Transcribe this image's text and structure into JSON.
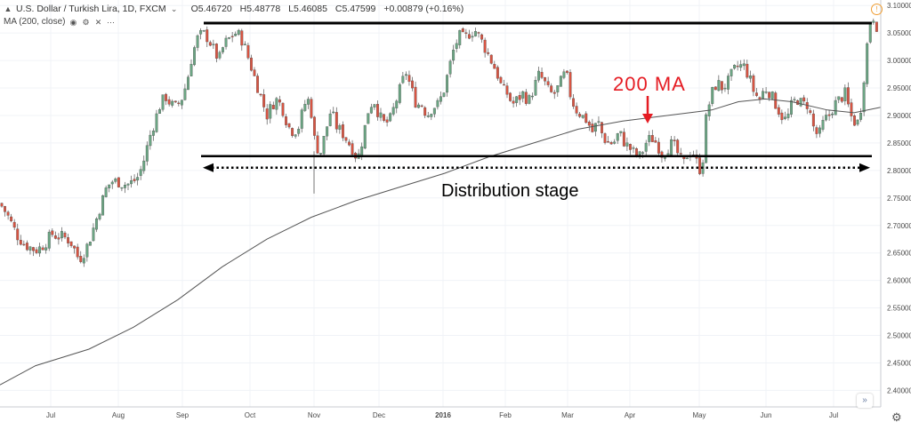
{
  "header": {
    "symbol": "U.S. Dollar / Turkish Lira, 1D, FXCM",
    "open": "O5.46720",
    "high": "H5.48778",
    "low": "L5.46085",
    "close": "C5.47599",
    "change": "+0.00879 (+0.16%)"
  },
  "ma_legend": "MA (200, close)",
  "annotations": {
    "ma_label": "200 MA",
    "stage_label": "Distribution stage"
  },
  "colors": {
    "up": "#6ba583",
    "down": "#d75442",
    "ma": "#555555",
    "grid": "#f0f3f7",
    "levels": "#000000",
    "arrow": "#e51c23"
  },
  "chart_data": {
    "type": "candlestick",
    "title": "U.S. Dollar / Turkish Lira, 1D, FXCM",
    "y_range": [
      2.37,
      3.11
    ],
    "y_ticks": [
      "2.40000",
      "2.45000",
      "2.50000",
      "2.55000",
      "2.60000",
      "2.65000",
      "2.70000",
      "2.75000",
      "2.80000",
      "2.85000",
      "2.90000",
      "2.95000",
      "3.00000",
      "3.05000",
      "3.10000"
    ],
    "x_ticks": [
      "Jul",
      "Aug",
      "Sep",
      "Oct",
      "Nov",
      "Dec",
      "2016",
      "Feb",
      "Mar",
      "Apr",
      "May",
      "Jun",
      "Jul"
    ],
    "grid": true,
    "price_path": [
      [
        0,
        2.74
      ],
      [
        8,
        2.72
      ],
      [
        14,
        2.7
      ],
      [
        20,
        2.68
      ],
      [
        28,
        2.665
      ],
      [
        34,
        2.66
      ],
      [
        40,
        2.655
      ],
      [
        46,
        2.66
      ],
      [
        52,
        2.67
      ],
      [
        58,
        2.685
      ],
      [
        64,
        2.68
      ],
      [
        70,
        2.68
      ],
      [
        76,
        2.675
      ],
      [
        82,
        2.665
      ],
      [
        86,
        2.645
      ],
      [
        90,
        2.64
      ],
      [
        96,
        2.655
      ],
      [
        102,
        2.68
      ],
      [
        108,
        2.71
      ],
      [
        114,
        2.74
      ],
      [
        120,
        2.77
      ],
      [
        126,
        2.78
      ],
      [
        132,
        2.78
      ],
      [
        138,
        2.775
      ],
      [
        144,
        2.775
      ],
      [
        150,
        2.78
      ],
      [
        156,
        2.79
      ],
      [
        162,
        2.82
      ],
      [
        168,
        2.86
      ],
      [
        174,
        2.89
      ],
      [
        180,
        2.92
      ],
      [
        186,
        2.935
      ],
      [
        192,
        2.92
      ],
      [
        198,
        2.915
      ],
      [
        204,
        2.93
      ],
      [
        210,
        2.96
      ],
      [
        216,
        3.01
      ],
      [
        222,
        3.04
      ],
      [
        228,
        3.05
      ],
      [
        234,
        3.04
      ],
      [
        240,
        3.02
      ],
      [
        246,
        3.0
      ],
      [
        252,
        3.03
      ],
      [
        258,
        3.04
      ],
      [
        264,
        3.05
      ],
      [
        270,
        3.045
      ],
      [
        276,
        3.02
      ],
      [
        282,
        2.99
      ],
      [
        288,
        2.96
      ],
      [
        294,
        2.93
      ],
      [
        300,
        2.9
      ],
      [
        306,
        2.92
      ],
      [
        312,
        2.93
      ],
      [
        318,
        2.91
      ],
      [
        324,
        2.88
      ],
      [
        330,
        2.87
      ],
      [
        336,
        2.88
      ],
      [
        342,
        2.92
      ],
      [
        348,
        2.93
      ],
      [
        354,
        2.85
      ],
      [
        360,
        2.83
      ],
      [
        366,
        2.87
      ],
      [
        372,
        2.91
      ],
      [
        378,
        2.88
      ],
      [
        384,
        2.87
      ],
      [
        390,
        2.855
      ],
      [
        396,
        2.84
      ],
      [
        402,
        2.82
      ],
      [
        408,
        2.86
      ],
      [
        414,
        2.91
      ],
      [
        420,
        2.93
      ],
      [
        426,
        2.9
      ],
      [
        432,
        2.885
      ],
      [
        438,
        2.89
      ],
      [
        444,
        2.92
      ],
      [
        450,
        2.95
      ],
      [
        456,
        2.98
      ],
      [
        462,
        2.95
      ],
      [
        468,
        2.92
      ],
      [
        474,
        2.92
      ],
      [
        480,
        2.9
      ],
      [
        486,
        2.915
      ],
      [
        492,
        2.92
      ],
      [
        498,
        2.94
      ],
      [
        504,
        2.98
      ],
      [
        510,
        3.02
      ],
      [
        516,
        3.045
      ],
      [
        522,
        3.04
      ],
      [
        528,
        3.05
      ],
      [
        534,
        3.055
      ],
      [
        540,
        3.04
      ],
      [
        546,
        3.02
      ],
      [
        552,
        3.0
      ],
      [
        558,
        2.98
      ],
      [
        564,
        2.95
      ],
      [
        570,
        2.94
      ],
      [
        576,
        2.92
      ],
      [
        582,
        2.93
      ],
      [
        588,
        2.94
      ],
      [
        594,
        2.925
      ],
      [
        600,
        2.95
      ],
      [
        606,
        2.975
      ],
      [
        612,
        2.96
      ],
      [
        618,
        2.94
      ],
      [
        624,
        2.94
      ],
      [
        630,
        2.96
      ],
      [
        636,
        2.98
      ],
      [
        642,
        2.93
      ],
      [
        648,
        2.91
      ],
      [
        654,
        2.9
      ],
      [
        660,
        2.89
      ],
      [
        666,
        2.87
      ],
      [
        672,
        2.89
      ],
      [
        678,
        2.86
      ],
      [
        684,
        2.85
      ],
      [
        690,
        2.85
      ],
      [
        696,
        2.87
      ],
      [
        702,
        2.85
      ],
      [
        708,
        2.84
      ],
      [
        714,
        2.83
      ],
      [
        720,
        2.825
      ],
      [
        726,
        2.85
      ],
      [
        732,
        2.86
      ],
      [
        738,
        2.85
      ],
      [
        744,
        2.83
      ],
      [
        750,
        2.84
      ],
      [
        756,
        2.85
      ],
      [
        762,
        2.83
      ],
      [
        768,
        2.81
      ],
      [
        774,
        2.835
      ],
      [
        780,
        2.83
      ],
      [
        786,
        2.8
      ],
      [
        790,
        2.82
      ],
      [
        794,
        2.9
      ],
      [
        800,
        2.94
      ],
      [
        806,
        2.96
      ],
      [
        812,
        2.95
      ],
      [
        818,
        2.96
      ],
      [
        824,
        2.98
      ],
      [
        830,
        2.99
      ],
      [
        836,
        2.99
      ],
      [
        842,
        2.97
      ],
      [
        848,
        2.94
      ],
      [
        854,
        2.93
      ],
      [
        860,
        2.95
      ],
      [
        866,
        2.94
      ],
      [
        872,
        2.92
      ],
      [
        878,
        2.9
      ],
      [
        884,
        2.89
      ],
      [
        890,
        2.92
      ],
      [
        896,
        2.93
      ],
      [
        902,
        2.92
      ],
      [
        908,
        2.92
      ],
      [
        914,
        2.88
      ],
      [
        920,
        2.86
      ],
      [
        926,
        2.89
      ],
      [
        932,
        2.9
      ],
      [
        938,
        2.92
      ],
      [
        944,
        2.93
      ],
      [
        950,
        2.94
      ],
      [
        956,
        2.9
      ],
      [
        962,
        2.885
      ],
      [
        966,
        2.89
      ],
      [
        970,
        2.95
      ],
      [
        974,
        3.02
      ],
      [
        978,
        3.07
      ],
      [
        982,
        3.08
      ],
      [
        986,
        3.06
      ],
      [
        990,
        3.04
      ]
    ],
    "ma_path": [
      [
        0,
        2.41
      ],
      [
        40,
        2.445
      ],
      [
        100,
        2.475
      ],
      [
        150,
        2.515
      ],
      [
        200,
        2.565
      ],
      [
        250,
        2.625
      ],
      [
        300,
        2.675
      ],
      [
        350,
        2.715
      ],
      [
        400,
        2.745
      ],
      [
        450,
        2.77
      ],
      [
        500,
        2.795
      ],
      [
        550,
        2.825
      ],
      [
        600,
        2.85
      ],
      [
        650,
        2.875
      ],
      [
        700,
        2.89
      ],
      [
        750,
        2.9
      ],
      [
        800,
        2.91
      ],
      [
        830,
        2.925
      ],
      [
        860,
        2.93
      ],
      [
        890,
        2.925
      ],
      [
        930,
        2.91
      ],
      [
        960,
        2.905
      ],
      [
        990,
        2.915
      ]
    ],
    "levels": [
      {
        "name": "resistance",
        "value": 3.068
      },
      {
        "name": "support",
        "value": 2.826
      }
    ],
    "distribution_span": {
      "from": "Sep",
      "to": "Jul"
    }
  }
}
